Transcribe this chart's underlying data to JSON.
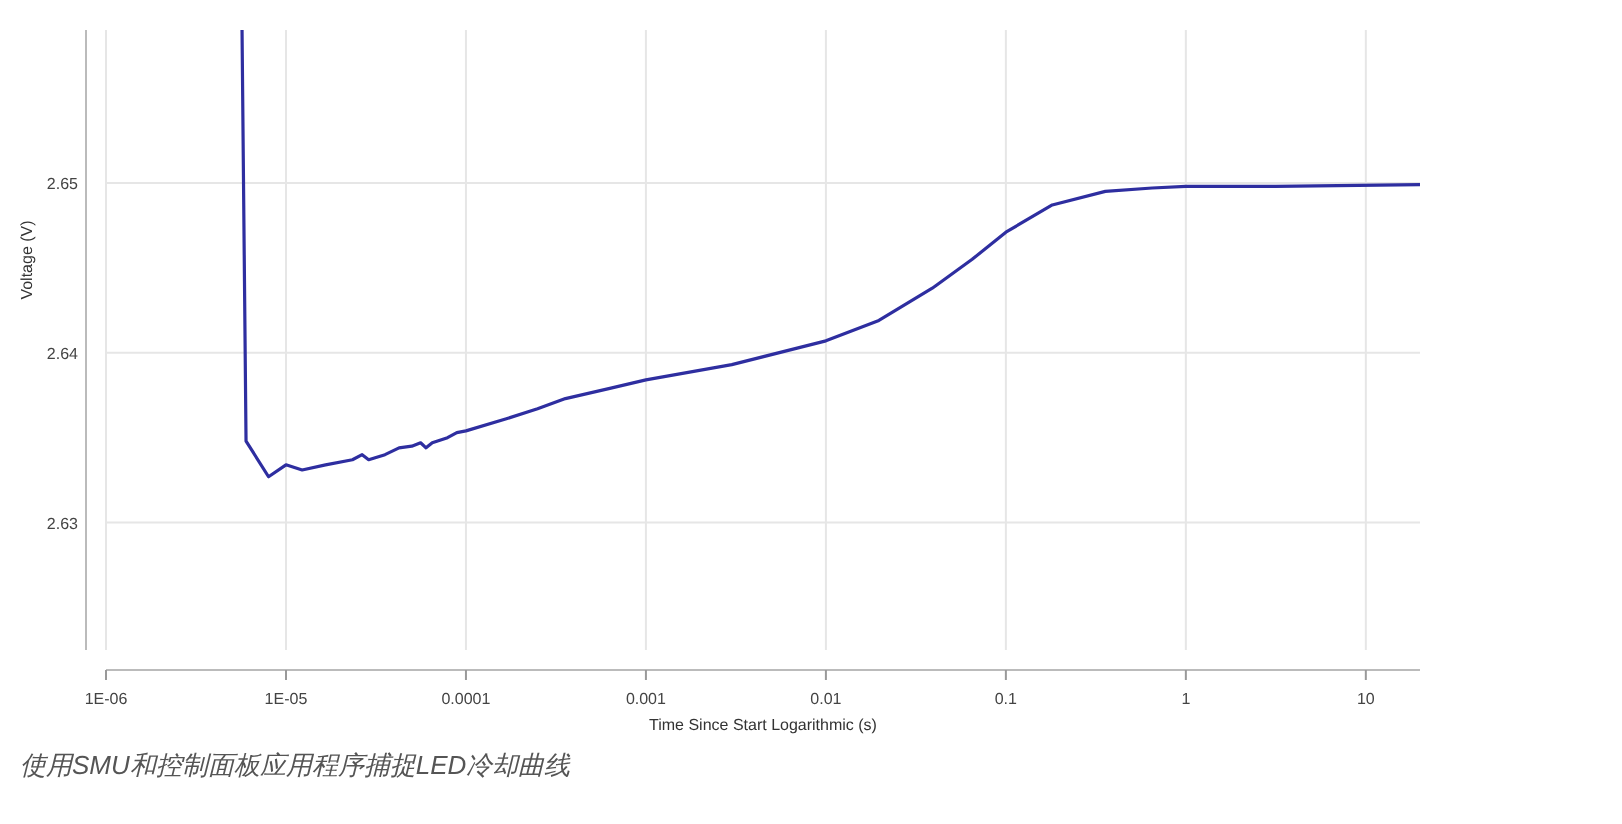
{
  "chart_data": {
    "type": "line",
    "xlabel": "Time Since Start Logarithmic (s)",
    "ylabel": "Voltage (V)",
    "annotations": [
      "使用SMU和控制面板应用程序捕捉LED冷却曲线"
    ],
    "log": "x",
    "grid": true,
    "marker": "none",
    "line_style": "solid",
    "xlim": [
      1e-06,
      20
    ],
    "ylim": [
      2.6225,
      2.659
    ],
    "xticks": [
      {
        "value": 1e-06,
        "label": "1E-06"
      },
      {
        "value": 1e-05,
        "label": "1E-05"
      },
      0.0001,
      0.001,
      0.01,
      0.1,
      1,
      10
    ],
    "yticks": [
      2.63,
      2.64,
      2.65
    ],
    "x": [
      5.7e-06,
      6e-06,
      8e-06,
      1e-05,
      1.23e-05,
      1.66e-05,
      2.34e-05,
      2.65e-05,
      2.88e-05,
      3.55e-05,
      4.25e-05,
      5e-05,
      5.6e-05,
      6e-05,
      6.5e-05,
      7.9e-05,
      8.9e-05,
      0.0001,
      0.000166,
      0.00025,
      0.000357,
      0.00063,
      0.001,
      0.003,
      0.0071,
      0.01,
      0.0197,
      0.039,
      0.065,
      0.1,
      0.181,
      0.357,
      0.65,
      1,
      3.16,
      20
    ],
    "series": [
      {
        "color": "#2e2ea0",
        "values": [
          2.659,
          2.6348,
          2.6327,
          2.6334,
          2.6331,
          2.6334,
          2.6337,
          2.634,
          2.6337,
          2.634,
          2.6344,
          2.6345,
          2.6347,
          2.6344,
          2.6347,
          2.635,
          2.6353,
          2.6354,
          2.6361,
          2.6367,
          2.6373,
          2.6379,
          2.6384,
          2.6393,
          2.6403,
          2.6407,
          2.6419,
          2.6438,
          2.6455,
          2.6471,
          2.6487,
          2.6495,
          2.6497,
          2.6498,
          2.6498,
          2.6499
        ]
      }
    ]
  }
}
